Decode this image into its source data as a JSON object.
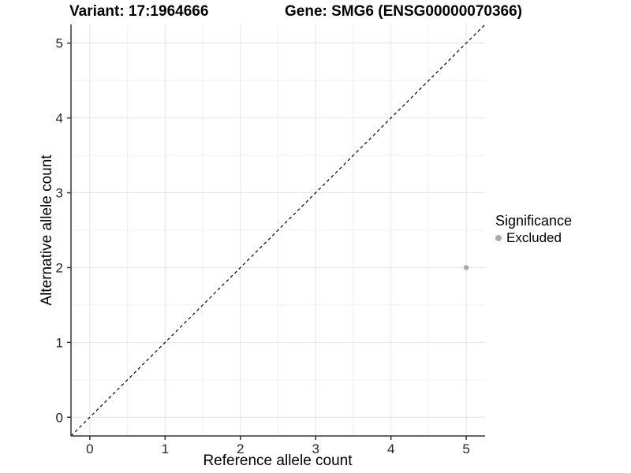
{
  "chart_data": {
    "type": "scatter",
    "titles": [
      "Variant: 17:1964666",
      "Gene: SMG6 (ENSG00000070366)"
    ],
    "xlabel": "Reference allele count",
    "ylabel": "Alternative allele count",
    "xlim": [
      -0.25,
      5.25
    ],
    "ylim": [
      -0.25,
      5.25
    ],
    "x_ticks": [
      0,
      1,
      2,
      3,
      4,
      5
    ],
    "y_ticks": [
      0,
      1,
      2,
      3,
      4,
      5
    ],
    "x_minor": [
      0.5,
      1.5,
      2.5,
      3.5,
      4.5
    ],
    "y_minor": [
      0.5,
      1.5,
      2.5,
      3.5,
      4.5
    ],
    "grid": "major+minor",
    "legend_position": "right-middle",
    "series": [
      {
        "name": "Excluded",
        "color": "#aaaaaa",
        "points": [
          {
            "x": 5,
            "y": 2
          }
        ]
      }
    ],
    "reference_line": {
      "kind": "identity (y = x)",
      "style": "dashed",
      "color": "#000000"
    },
    "legend": {
      "title": "Significance",
      "items": [
        {
          "label": "Excluded",
          "color": "#aaaaaa"
        }
      ]
    },
    "colors": {
      "background": "#ffffff",
      "grid_major": "#e4e4e4",
      "grid_minor": "#f1f1f1",
      "axis": "#333333",
      "ref_line": "#000000",
      "tick_text": "#262626",
      "title_text": "#000000"
    }
  }
}
